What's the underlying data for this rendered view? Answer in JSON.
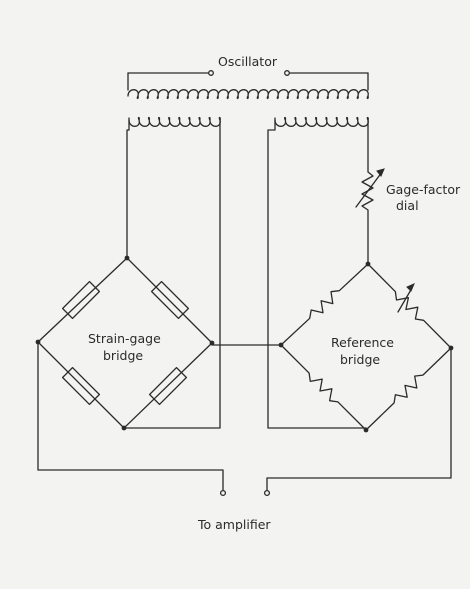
{
  "labels": {
    "oscillator": "Oscillator",
    "gage_factor_line1": "Gage-factor",
    "gage_factor_line2": "dial",
    "strain_gage_line1": "Strain-gage",
    "strain_gage_line2": "bridge",
    "reference_line1": "Reference",
    "reference_line2": "bridge",
    "to_amplifier": "To amplifier"
  }
}
